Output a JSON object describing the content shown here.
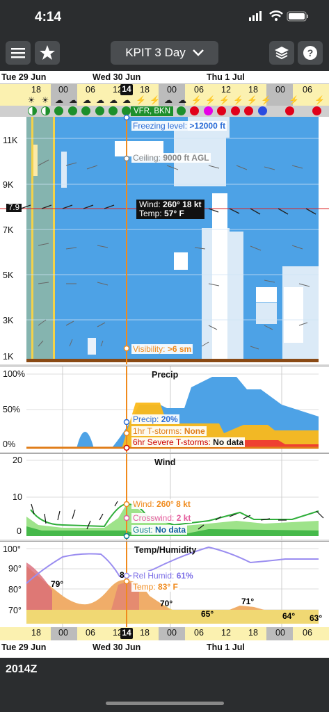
{
  "status_bar": {
    "time": "4:14"
  },
  "toolbar": {
    "title": "KPIT 3 Day",
    "menu_icon": "hamburger-menu-icon",
    "favorite_icon": "star-icon",
    "layers_icon": "layers-icon",
    "help_icon": "question-mark-icon",
    "dropdown_icon": "chevron-down-icon"
  },
  "timeline": {
    "days": [
      "Tue 29 Jun",
      "Wed 30 Jun",
      "Thu 1 Jul"
    ],
    "hours": [
      "18",
      "00",
      "06",
      "12",
      "14",
      "18",
      "00",
      "06",
      "12",
      "18",
      "00",
      "06"
    ],
    "now_hour": "14"
  },
  "flight_category": {
    "label": "VFR, BKN",
    "color_vfr": "#1d8f2b",
    "color_ifr": "#e1001a",
    "color_lifr": "#e600e6",
    "color_mvfr": "#2a4be0"
  },
  "cloud_panel": {
    "y_labels": [
      "11K",
      "9K",
      "7K",
      "5K",
      "3K",
      "1K"
    ],
    "current_altitude": "7.9",
    "freezing_level": {
      "label": "Freezing level:",
      "value": ">12000 ft"
    },
    "ceiling": {
      "label": "Ceiling:",
      "value": "9000 ft AGL"
    },
    "wind": {
      "label": "Wind:",
      "value": "260° 18 kt"
    },
    "temp": {
      "label": "Temp:",
      "value": "57° F"
    },
    "visibility": {
      "label": "Visibility:",
      "value": ">6 sm"
    }
  },
  "precip_panel": {
    "title": "Precip",
    "y_labels": [
      "100%",
      "50%",
      "0%"
    ],
    "precip": {
      "label": "Precip:",
      "value": "20%"
    },
    "tstorms": {
      "label": "1hr T-storms:",
      "value": "None"
    },
    "severe": {
      "label": "6hr Severe T-storms:",
      "value": "No data"
    }
  },
  "wind_panel": {
    "title": "Wind",
    "y_labels": [
      "20",
      "10",
      "0"
    ],
    "wind": {
      "label": "Wind:",
      "value": "260° 8 kt"
    },
    "crosswind": {
      "label": "Crosswind:",
      "value": "2 kt"
    },
    "gust": {
      "label": "Gust:",
      "value": "No data"
    }
  },
  "temp_panel": {
    "title": "Temp/Humidity",
    "y_labels": [
      "100°",
      "90°",
      "80°",
      "70°"
    ],
    "rel_humid": {
      "label": "Rel Humid:",
      "value": "61%"
    },
    "temp": {
      "label": "Temp:",
      "value": "83° F"
    },
    "point_labels": [
      "79°",
      "8",
      "70°",
      "65°",
      "71°",
      "64°",
      "63°"
    ]
  },
  "bottom": {
    "zulu_time": "2014Z"
  }
}
